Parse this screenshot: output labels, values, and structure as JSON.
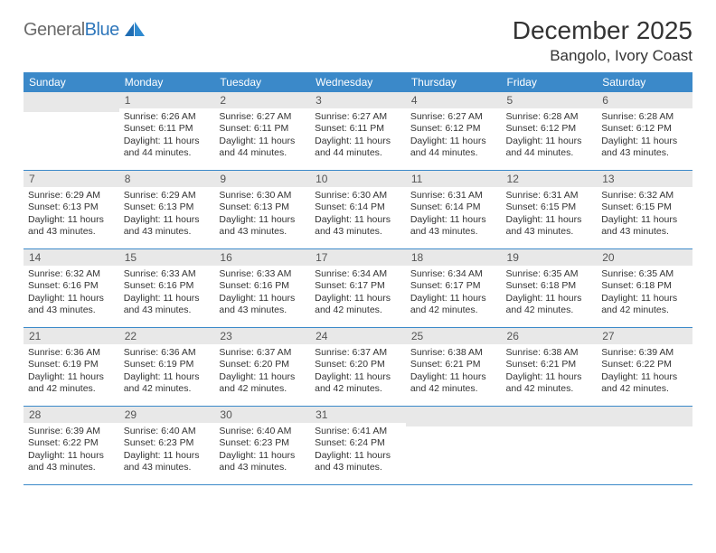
{
  "brand": {
    "part1": "General",
    "part2": "Blue"
  },
  "title": "December 2025",
  "location": "Bangolo, Ivory Coast",
  "colors": {
    "header_bg": "#3b89c9",
    "header_text": "#ffffff",
    "daynum_bg": "#e8e8e8",
    "row_border": "#3b89c9",
    "logo_gray": "#6b6b6b",
    "logo_blue": "#2f77bb",
    "page_bg": "#ffffff",
    "text": "#333333"
  },
  "day_headers": [
    "Sunday",
    "Monday",
    "Tuesday",
    "Wednesday",
    "Thursday",
    "Friday",
    "Saturday"
  ],
  "weeks": [
    [
      {
        "num": "",
        "sunrise": "",
        "sunset": "",
        "daylight": ""
      },
      {
        "num": "1",
        "sunrise": "Sunrise: 6:26 AM",
        "sunset": "Sunset: 6:11 PM",
        "daylight": "Daylight: 11 hours and 44 minutes."
      },
      {
        "num": "2",
        "sunrise": "Sunrise: 6:27 AM",
        "sunset": "Sunset: 6:11 PM",
        "daylight": "Daylight: 11 hours and 44 minutes."
      },
      {
        "num": "3",
        "sunrise": "Sunrise: 6:27 AM",
        "sunset": "Sunset: 6:11 PM",
        "daylight": "Daylight: 11 hours and 44 minutes."
      },
      {
        "num": "4",
        "sunrise": "Sunrise: 6:27 AM",
        "sunset": "Sunset: 6:12 PM",
        "daylight": "Daylight: 11 hours and 44 minutes."
      },
      {
        "num": "5",
        "sunrise": "Sunrise: 6:28 AM",
        "sunset": "Sunset: 6:12 PM",
        "daylight": "Daylight: 11 hours and 44 minutes."
      },
      {
        "num": "6",
        "sunrise": "Sunrise: 6:28 AM",
        "sunset": "Sunset: 6:12 PM",
        "daylight": "Daylight: 11 hours and 43 minutes."
      }
    ],
    [
      {
        "num": "7",
        "sunrise": "Sunrise: 6:29 AM",
        "sunset": "Sunset: 6:13 PM",
        "daylight": "Daylight: 11 hours and 43 minutes."
      },
      {
        "num": "8",
        "sunrise": "Sunrise: 6:29 AM",
        "sunset": "Sunset: 6:13 PM",
        "daylight": "Daylight: 11 hours and 43 minutes."
      },
      {
        "num": "9",
        "sunrise": "Sunrise: 6:30 AM",
        "sunset": "Sunset: 6:13 PM",
        "daylight": "Daylight: 11 hours and 43 minutes."
      },
      {
        "num": "10",
        "sunrise": "Sunrise: 6:30 AM",
        "sunset": "Sunset: 6:14 PM",
        "daylight": "Daylight: 11 hours and 43 minutes."
      },
      {
        "num": "11",
        "sunrise": "Sunrise: 6:31 AM",
        "sunset": "Sunset: 6:14 PM",
        "daylight": "Daylight: 11 hours and 43 minutes."
      },
      {
        "num": "12",
        "sunrise": "Sunrise: 6:31 AM",
        "sunset": "Sunset: 6:15 PM",
        "daylight": "Daylight: 11 hours and 43 minutes."
      },
      {
        "num": "13",
        "sunrise": "Sunrise: 6:32 AM",
        "sunset": "Sunset: 6:15 PM",
        "daylight": "Daylight: 11 hours and 43 minutes."
      }
    ],
    [
      {
        "num": "14",
        "sunrise": "Sunrise: 6:32 AM",
        "sunset": "Sunset: 6:16 PM",
        "daylight": "Daylight: 11 hours and 43 minutes."
      },
      {
        "num": "15",
        "sunrise": "Sunrise: 6:33 AM",
        "sunset": "Sunset: 6:16 PM",
        "daylight": "Daylight: 11 hours and 43 minutes."
      },
      {
        "num": "16",
        "sunrise": "Sunrise: 6:33 AM",
        "sunset": "Sunset: 6:16 PM",
        "daylight": "Daylight: 11 hours and 43 minutes."
      },
      {
        "num": "17",
        "sunrise": "Sunrise: 6:34 AM",
        "sunset": "Sunset: 6:17 PM",
        "daylight": "Daylight: 11 hours and 42 minutes."
      },
      {
        "num": "18",
        "sunrise": "Sunrise: 6:34 AM",
        "sunset": "Sunset: 6:17 PM",
        "daylight": "Daylight: 11 hours and 42 minutes."
      },
      {
        "num": "19",
        "sunrise": "Sunrise: 6:35 AM",
        "sunset": "Sunset: 6:18 PM",
        "daylight": "Daylight: 11 hours and 42 minutes."
      },
      {
        "num": "20",
        "sunrise": "Sunrise: 6:35 AM",
        "sunset": "Sunset: 6:18 PM",
        "daylight": "Daylight: 11 hours and 42 minutes."
      }
    ],
    [
      {
        "num": "21",
        "sunrise": "Sunrise: 6:36 AM",
        "sunset": "Sunset: 6:19 PM",
        "daylight": "Daylight: 11 hours and 42 minutes."
      },
      {
        "num": "22",
        "sunrise": "Sunrise: 6:36 AM",
        "sunset": "Sunset: 6:19 PM",
        "daylight": "Daylight: 11 hours and 42 minutes."
      },
      {
        "num": "23",
        "sunrise": "Sunrise: 6:37 AM",
        "sunset": "Sunset: 6:20 PM",
        "daylight": "Daylight: 11 hours and 42 minutes."
      },
      {
        "num": "24",
        "sunrise": "Sunrise: 6:37 AM",
        "sunset": "Sunset: 6:20 PM",
        "daylight": "Daylight: 11 hours and 42 minutes."
      },
      {
        "num": "25",
        "sunrise": "Sunrise: 6:38 AM",
        "sunset": "Sunset: 6:21 PM",
        "daylight": "Daylight: 11 hours and 42 minutes."
      },
      {
        "num": "26",
        "sunrise": "Sunrise: 6:38 AM",
        "sunset": "Sunset: 6:21 PM",
        "daylight": "Daylight: 11 hours and 42 minutes."
      },
      {
        "num": "27",
        "sunrise": "Sunrise: 6:39 AM",
        "sunset": "Sunset: 6:22 PM",
        "daylight": "Daylight: 11 hours and 42 minutes."
      }
    ],
    [
      {
        "num": "28",
        "sunrise": "Sunrise: 6:39 AM",
        "sunset": "Sunset: 6:22 PM",
        "daylight": "Daylight: 11 hours and 43 minutes."
      },
      {
        "num": "29",
        "sunrise": "Sunrise: 6:40 AM",
        "sunset": "Sunset: 6:23 PM",
        "daylight": "Daylight: 11 hours and 43 minutes."
      },
      {
        "num": "30",
        "sunrise": "Sunrise: 6:40 AM",
        "sunset": "Sunset: 6:23 PM",
        "daylight": "Daylight: 11 hours and 43 minutes."
      },
      {
        "num": "31",
        "sunrise": "Sunrise: 6:41 AM",
        "sunset": "Sunset: 6:24 PM",
        "daylight": "Daylight: 11 hours and 43 minutes."
      },
      {
        "num": "",
        "sunrise": "",
        "sunset": "",
        "daylight": ""
      },
      {
        "num": "",
        "sunrise": "",
        "sunset": "",
        "daylight": ""
      },
      {
        "num": "",
        "sunrise": "",
        "sunset": "",
        "daylight": ""
      }
    ]
  ]
}
